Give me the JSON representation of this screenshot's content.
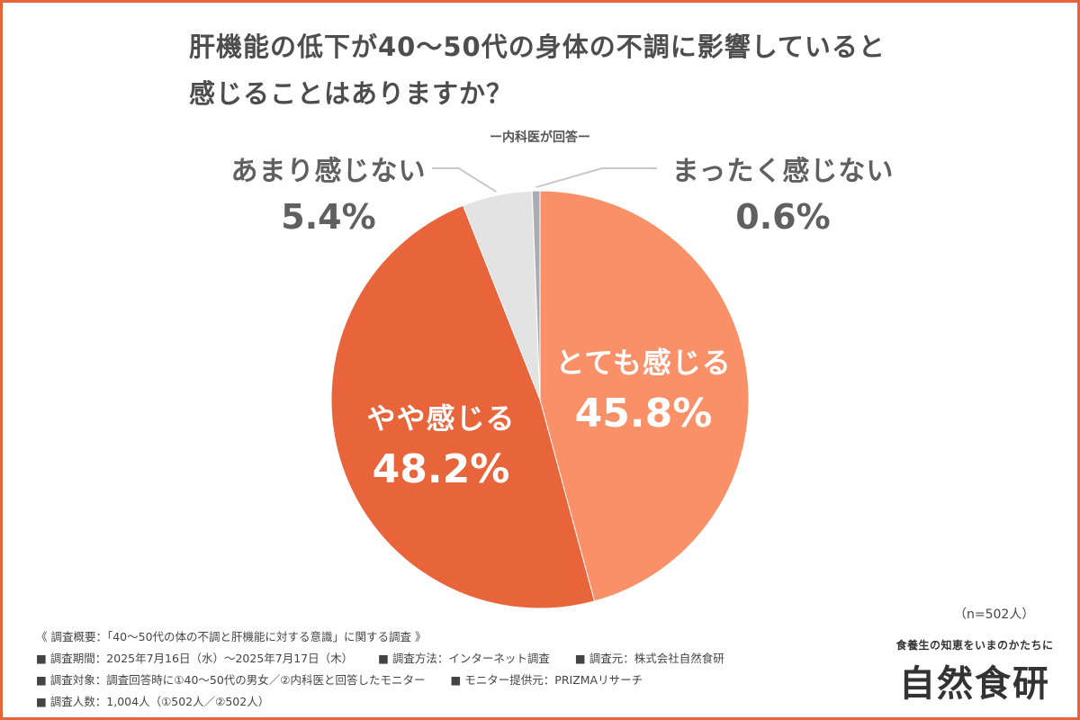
{
  "title_line1": "肝機能の低下が40〜50代の身体の不調に影響していると",
  "title_line2": "感じることはありますか？",
  "subtitle": "ー内科医が回答ー",
  "chart_data": {
    "type": "pie",
    "title": "肝機能の低下が40〜50代の身体の不調に影響していると感じることはありますか？",
    "subtitle": "ー内科医が回答ー",
    "slices": [
      {
        "label": "とても感じる",
        "value": 45.8,
        "display": "45.8%",
        "color": "#f99068"
      },
      {
        "label": "やや感じる",
        "value": 48.2,
        "display": "48.2%",
        "color": "#e8643a"
      },
      {
        "label": "あまり感じない",
        "value": 5.4,
        "display": "5.4%",
        "color": "#e3e3e3"
      },
      {
        "label": "まったく感じない",
        "value": 0.6,
        "display": "0.6%",
        "color": "#a9adb3"
      }
    ],
    "start": "12 o'clock, clockwise",
    "n_note": "（n=502人）"
  },
  "survey": {
    "heading": "《 調査概要：「40〜50代の体の不調と肝機能に対する意識」に関する調査 》",
    "period": "■ 調査期間：2025年7月16日（水）〜2025年7月17日（木）",
    "method": "■ 調査方法：インターネット調査",
    "organizer": "■ 調査元：株式会社自然食研",
    "target": "■ 調査対象：調査回答時に①40〜50代の男女／②内科医と回答したモニター",
    "provider": "■ モニター提供元：PRIZMAリサーチ",
    "count": "■ 調査人数：1,004人（①502人／②502人）"
  },
  "brand": {
    "tagline": "食養生の知恵をいまのかたちに",
    "name": "自然食研"
  }
}
